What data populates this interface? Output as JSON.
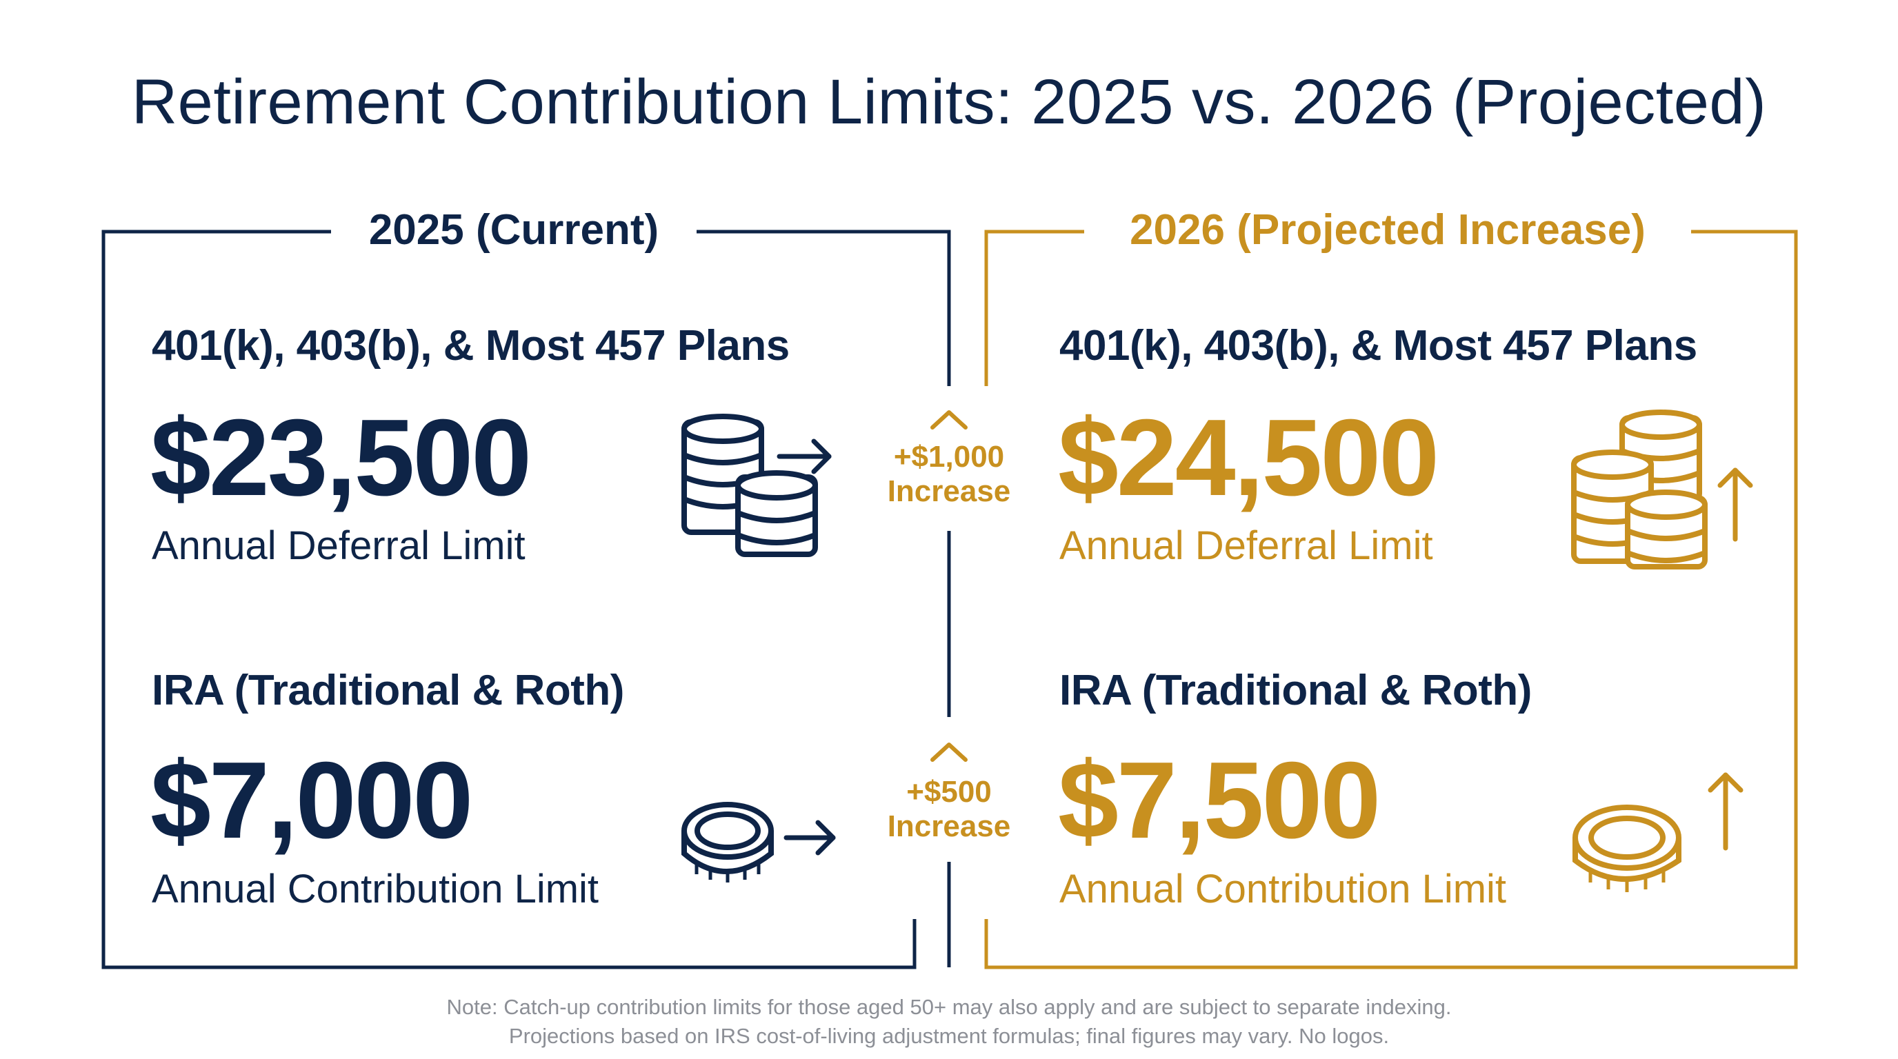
{
  "title": "Retirement Contribution Limits: 2025 vs. 2026 (Projected)",
  "colors": {
    "navy": "#0e2447",
    "gold": "#c8901f",
    "note_gray": "#8c8f96"
  },
  "panel_2025": {
    "heading": "2025 (Current)",
    "plans": {
      "label": "401(k), 403(b), & Most 457 Plans",
      "value": "$23,500",
      "caption": "Annual Deferral Limit",
      "icon": "coin-stacks-arrow-right-icon"
    },
    "ira": {
      "label": "IRA (Traditional & Roth)",
      "value": "$7,000",
      "caption": "Annual Contribution Limit",
      "icon": "coin-arrow-right-icon"
    }
  },
  "panel_2026": {
    "heading": "2026 (Projected Increase)",
    "plans": {
      "label": "401(k), 403(b), & Most 457 Plans",
      "value": "$24,500",
      "caption": "Annual Deferral Limit",
      "icon": "coin-stacks-arrow-up-icon"
    },
    "ira": {
      "label": "IRA (Traditional & Roth)",
      "value": "$7,500",
      "caption": "Annual Contribution Limit",
      "icon": "coin-arrow-up-icon"
    }
  },
  "deltas": [
    {
      "amount": "+$1,000",
      "word": "Increase",
      "icon": "chevron-up-icon"
    },
    {
      "amount": "+$500",
      "word": "Increase",
      "icon": "chevron-up-icon"
    }
  ],
  "note": {
    "line1": "Note: Catch-up contribution limits for those aged 50+ may also apply and are subject to separate indexing.",
    "line2": "Projections based on IRS cost-of-living adjustment formulas; final figures may vary. No logos."
  }
}
